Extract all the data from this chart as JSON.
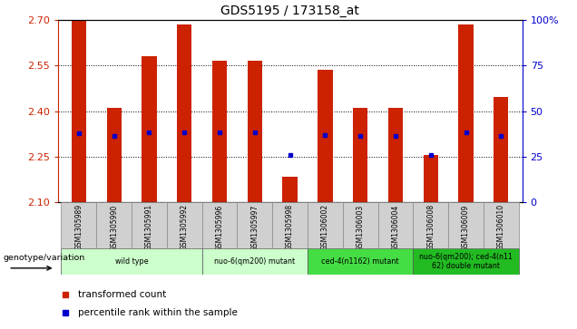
{
  "title": "GDS5195 / 173158_at",
  "samples": [
    "GSM1305989",
    "GSM1305990",
    "GSM1305991",
    "GSM1305992",
    "GSM1305996",
    "GSM1305997",
    "GSM1305998",
    "GSM1306002",
    "GSM1306003",
    "GSM1306004",
    "GSM1306008",
    "GSM1306009",
    "GSM1306010"
  ],
  "bar_tops": [
    2.7,
    2.41,
    2.58,
    2.685,
    2.565,
    2.565,
    2.185,
    2.535,
    2.41,
    2.41,
    2.255,
    2.685,
    2.445
  ],
  "bar_bottom": 2.1,
  "blue_markers": [
    2.328,
    2.318,
    2.33,
    2.33,
    2.33,
    2.33,
    2.255,
    2.322,
    2.318,
    2.318,
    2.255,
    2.33,
    2.318
  ],
  "ylim": [
    2.1,
    2.7
  ],
  "yticks_left": [
    2.1,
    2.25,
    2.4,
    2.55,
    2.7
  ],
  "yticks_right": [
    0,
    25,
    50,
    75,
    100
  ],
  "bar_color": "#CC2200",
  "marker_color": "#0000CC",
  "groups": [
    {
      "label": "wild type",
      "start": 0,
      "end": 3,
      "color": "#ccffcc"
    },
    {
      "label": "nuo-6(qm200) mutant",
      "start": 4,
      "end": 6,
      "color": "#ccffcc"
    },
    {
      "label": "ced-4(n1162) mutant",
      "start": 7,
      "end": 9,
      "color": "#44dd44"
    },
    {
      "label": "nuo-6(qm200); ced-4(n11\n62) double mutant",
      "start": 10,
      "end": 12,
      "color": "#22bb22"
    }
  ],
  "legend_items": [
    {
      "label": "transformed count",
      "color": "#CC2200"
    },
    {
      "label": "percentile rank within the sample",
      "color": "#0000CC"
    }
  ],
  "xlabel_genotype": "genotype/variation",
  "bg_color": "#ffffff",
  "left_tick_color": "#CC2200",
  "right_tick_color": "#0000CC",
  "gsm_bg_color": "#d0d0d0"
}
